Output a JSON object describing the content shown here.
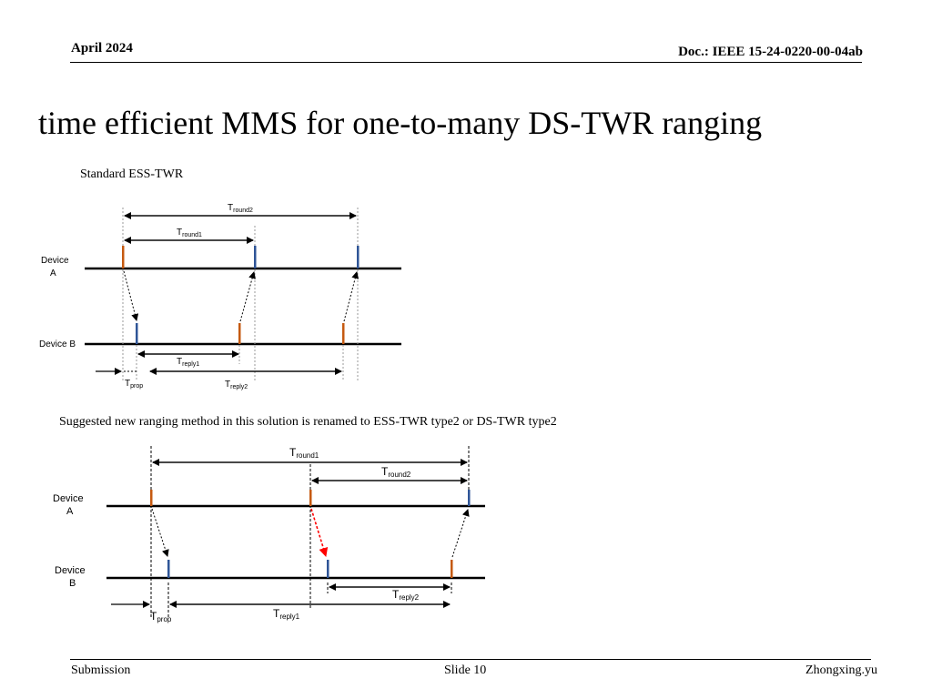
{
  "header": {
    "date": "April 2024",
    "doc": "Doc.: IEEE 15-24-0220-00-04ab"
  },
  "title": "time efficient  MMS for one-to-many DS-TWR ranging",
  "diagram1": {
    "caption": "Standard ESS-TWR",
    "device_a_line1": "Device",
    "device_a_line2": "A",
    "device_b": "Device B",
    "t_round2": {
      "main": "T",
      "sub": "round2"
    },
    "t_round1": {
      "main": "T",
      "sub": "round1"
    },
    "t_reply1": {
      "main": "T",
      "sub": "reply1"
    },
    "t_reply2": {
      "main": "T",
      "sub": "reply2"
    },
    "t_prop": {
      "main": "T",
      "sub": "prop"
    }
  },
  "diagram2": {
    "caption": "Suggested new ranging method in this solution  is renamed to ESS-TWR type2 or  DS-TWR type2",
    "device_a_line1": "Device",
    "device_a_line2": "A",
    "device_b_line1": "Device",
    "device_b_line2": "B",
    "t_round1": {
      "main": "T",
      "sub": "round1"
    },
    "t_round2": {
      "main": "T",
      "sub": "round2"
    },
    "t_reply2": {
      "main": "T",
      "sub": "reply2"
    },
    "t_reply1": {
      "main": "T",
      "sub": "reply1"
    },
    "t_prop": {
      "main": "T",
      "sub": "prop"
    }
  },
  "colors": {
    "orange_marker": "#c55a11",
    "blue_marker": "#2f5597",
    "red_arrow": "#ff0000"
  },
  "footer": {
    "left": "Submission",
    "center": "Slide 10",
    "right": "Zhongxing.yu"
  }
}
